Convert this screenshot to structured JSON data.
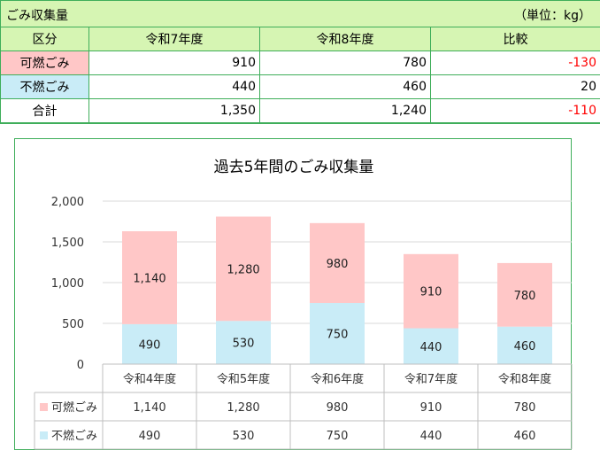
{
  "summary": {
    "title": "ごみ収集量",
    "unit": "（単位：kg）",
    "headers": [
      "区分",
      "令和7年度",
      "令和8年度",
      "比較"
    ],
    "rows": [
      {
        "label": "可燃ごみ",
        "r7": "910",
        "r8": "780",
        "diff": "-130"
      },
      {
        "label": "不燃ごみ",
        "r7": "440",
        "r8": "460",
        "diff": "20"
      },
      {
        "label": "合計",
        "r7": "1,350",
        "r8": "1,240",
        "diff": "-110"
      }
    ]
  },
  "colors": {
    "header_bg": "#d6f5b3",
    "border": "#3fae5a",
    "burnable": "#ffc7c7",
    "nonburnable": "#c9ecf7",
    "negative": "#ff0000"
  },
  "chart_data": {
    "type": "bar",
    "stacked": true,
    "title": "過去5年間のごみ収集量",
    "categories": [
      "令和4年度",
      "令和5年度",
      "令和6年度",
      "令和7年度",
      "令和8年度"
    ],
    "series": [
      {
        "name": "可燃ごみ",
        "values": [
          1140,
          1280,
          980,
          910,
          780
        ],
        "labels": [
          "1,140",
          "1,280",
          "980",
          "910",
          "780"
        ]
      },
      {
        "name": "不燃ごみ",
        "values": [
          490,
          530,
          750,
          440,
          460
        ],
        "labels": [
          "490",
          "530",
          "750",
          "440",
          "460"
        ]
      }
    ],
    "ylim": [
      0,
      2000
    ],
    "yticks": [
      "0",
      "500",
      "1,000",
      "1,500",
      "2,000"
    ],
    "grid": true,
    "data_table": true,
    "legend": "data-table"
  }
}
